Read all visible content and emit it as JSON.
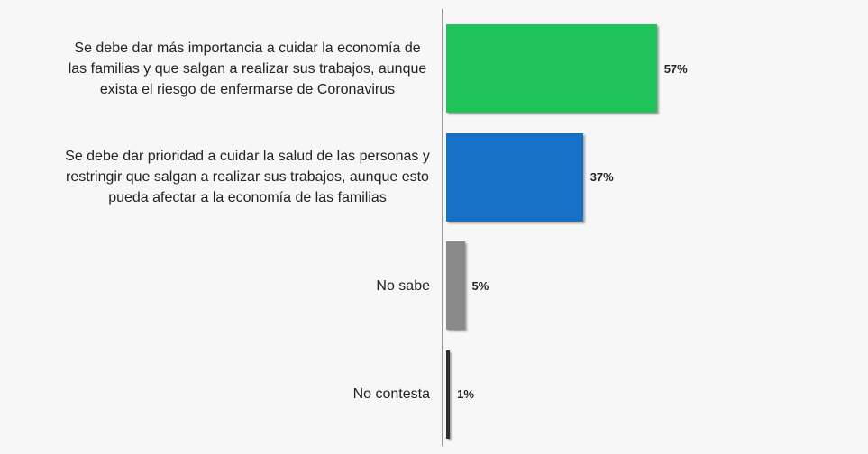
{
  "chart_data": {
    "type": "hbar",
    "categories": [
      "Se debe dar más importancia a cuidar la economía de las familias y que salgan a realizar sus trabajos, aunque exista el riesgo de enfermarse de Coronavirus",
      "Se debe dar prioridad a cuidar la salud de las personas y restringir que salgan a realizar sus trabajos, aunque esto pueda afectar a la economía de las familias",
      "No sabe",
      "No contesta"
    ],
    "values": [
      57,
      37,
      5,
      1
    ],
    "value_labels": [
      "57%",
      "37%",
      "5%",
      "1%"
    ],
    "colors": [
      "#1ec45a",
      "#1570c6",
      "#8a8a8a",
      "#2e2e2e"
    ]
  }
}
